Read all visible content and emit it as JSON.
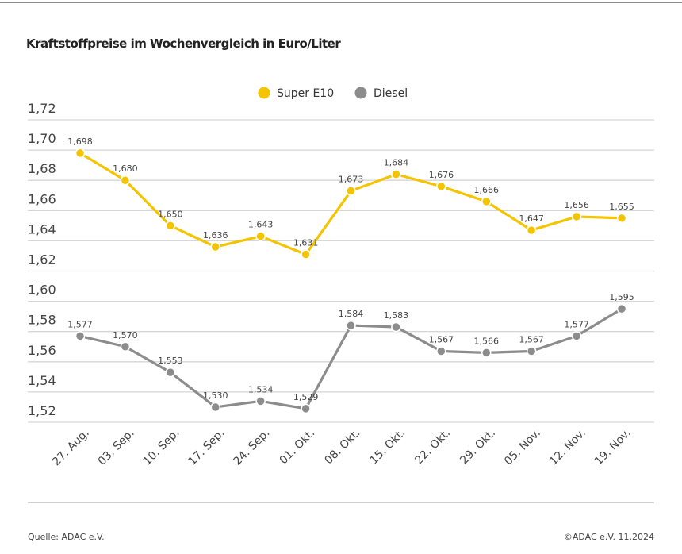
{
  "chart_data": {
    "type": "line",
    "title": "Kraftstoffpreise im Wochenvergleich in Euro/Liter",
    "categories": [
      "27. Aug.",
      "03. Sep.",
      "10. Sep.",
      "17. Sep.",
      "24. Sep.",
      "01. Okt.",
      "08. Okt.",
      "15. Okt.",
      "22. Okt.",
      "29. Okt.",
      "05. Nov.",
      "12. Nov.",
      "19. Nov."
    ],
    "series": [
      {
        "name": "Super E10",
        "color": "#f5c400",
        "values": [
          1.698,
          1.68,
          1.65,
          1.636,
          1.643,
          1.631,
          1.673,
          1.684,
          1.676,
          1.666,
          1.647,
          1.656,
          1.655
        ],
        "labels": [
          "1,698",
          "1,680",
          "1,650",
          "1,636",
          "1,643",
          "1,631",
          "1,673",
          "1,684",
          "1,676",
          "1,666",
          "1,647",
          "1,656",
          "1,655"
        ]
      },
      {
        "name": "Diesel",
        "color": "#8c8c8c",
        "values": [
          1.577,
          1.57,
          1.553,
          1.53,
          1.534,
          1.529,
          1.584,
          1.583,
          1.567,
          1.566,
          1.567,
          1.577,
          1.595
        ],
        "labels": [
          "1,577",
          "1,570",
          "1,553",
          "1,530",
          "1,534",
          "1,529",
          "1,584",
          "1,583",
          "1,567",
          "1,566",
          "1,567",
          "1,577",
          "1,595"
        ]
      }
    ],
    "yticks": [
      1.72,
      1.7,
      1.68,
      1.66,
      1.64,
      1.62,
      1.6,
      1.58,
      1.56,
      1.54,
      1.52
    ],
    "ytick_labels": [
      "1,72",
      "1,70",
      "1,68",
      "1,66",
      "1,64",
      "1,62",
      "1,60",
      "1,58",
      "1,56",
      "1,54",
      "1,52"
    ],
    "ylim": [
      1.52,
      1.72
    ],
    "grid": true,
    "legend": "top-center"
  },
  "footer": {
    "source": "Quelle: ADAC e.V.",
    "copyright": "©ADAC e.V. 11.2024"
  }
}
